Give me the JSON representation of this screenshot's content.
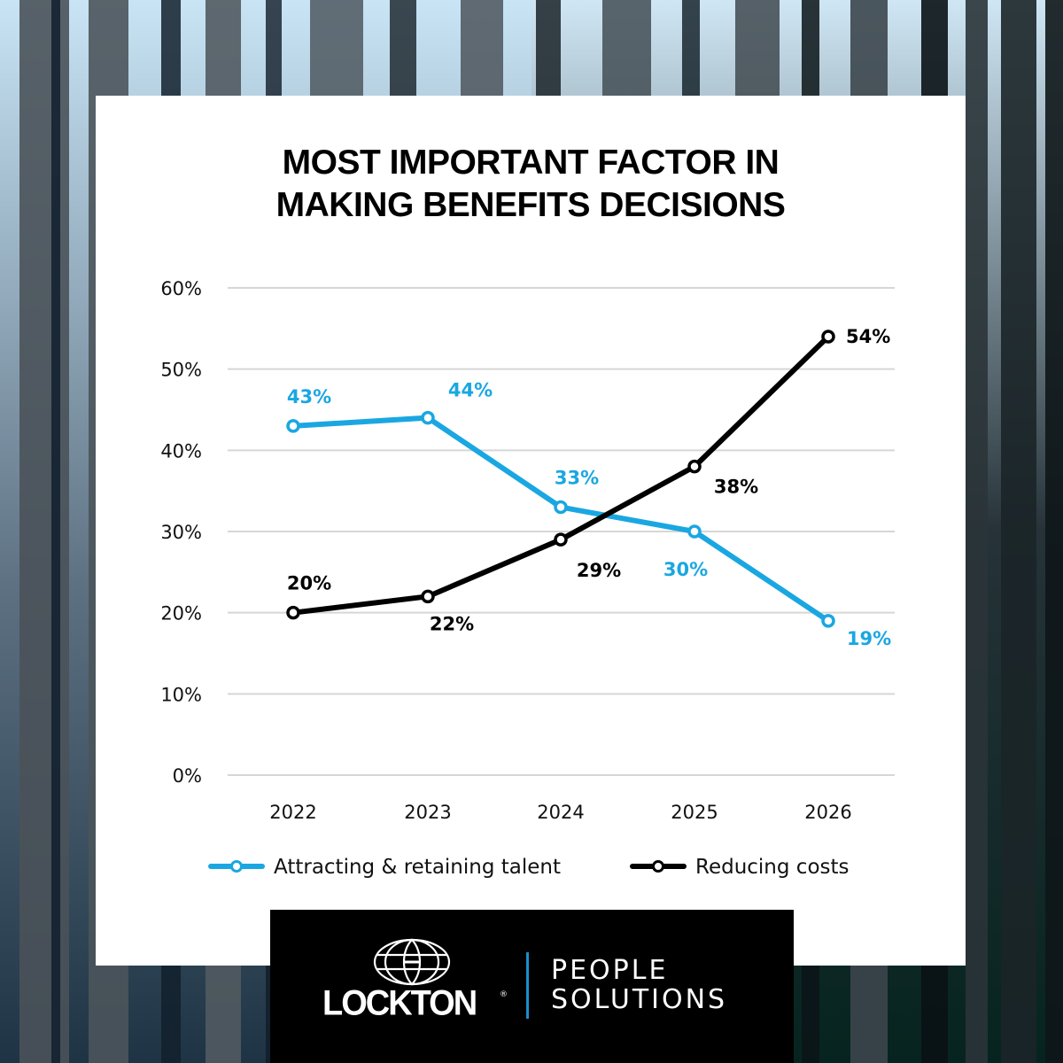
{
  "colors": {
    "talent": "#1aa7e1",
    "costs": "#000000",
    "grid": "#d6d6d6",
    "logo_accent": "#1a8fc9"
  },
  "brand": {
    "company": "LOCKTON",
    "registered_mark": "®",
    "division_line1": "PEOPLE",
    "division_line2": "SOLUTIONS"
  },
  "chart_data": {
    "type": "line",
    "title": "MOST IMPORTANT FACTOR IN MAKING BENEFITS DECISIONS",
    "title_lines": [
      "MOST IMPORTANT FACTOR IN",
      "MAKING BENEFITS DECISIONS"
    ],
    "categories": [
      "2022",
      "2023",
      "2024",
      "2025",
      "2026"
    ],
    "series": [
      {
        "name": "Attracting & retaining talent",
        "color": "#1aa7e1",
        "values": [
          43,
          44,
          33,
          30,
          19
        ],
        "labels": [
          "43%",
          "44%",
          "33%",
          "30%",
          "19%"
        ],
        "label_positions": [
          "above",
          "above-right",
          "above",
          "below-left",
          "below-right"
        ]
      },
      {
        "name": "Reducing costs",
        "color": "#000000",
        "values": [
          20,
          22,
          29,
          38,
          54
        ],
        "labels": [
          "20%",
          "22%",
          "29%",
          "38%",
          "54%"
        ],
        "label_positions": [
          "above",
          "below",
          "below-right",
          "below-right",
          "right"
        ]
      }
    ],
    "xlabel": "",
    "ylabel": "",
    "ylim": [
      0,
      60
    ],
    "yticks": [
      0,
      10,
      20,
      30,
      40,
      50,
      60
    ],
    "ytick_labels": [
      "0%",
      "10%",
      "20%",
      "30%",
      "40%",
      "50%",
      "60%"
    ],
    "grid": true,
    "legend": "bottom"
  }
}
